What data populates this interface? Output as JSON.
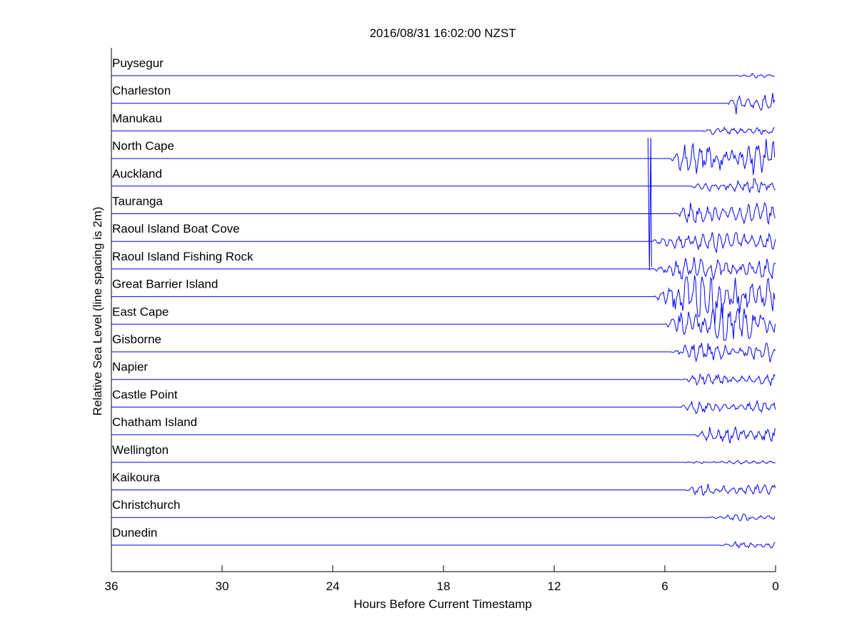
{
  "chart_data": {
    "type": "line",
    "title": "2016/08/31 16:02:00 NZST",
    "xlabel": "Hours Before Current Timestamp",
    "ylabel": "Relative Sea Level (line spacing is 2m)",
    "xlim": [
      36,
      0
    ],
    "x_ticks": [
      36,
      30,
      24,
      18,
      12,
      6,
      0
    ],
    "x_reversed": true,
    "line_spacing_m": 2,
    "line_color": "#0000ff",
    "grid": false,
    "series": [
      {
        "name": "Puysegur",
        "event_start_h": 2.2,
        "amplitude": 0.2
      },
      {
        "name": "Charleston",
        "event_start_h": 2.6,
        "amplitude": 0.9
      },
      {
        "name": "Manukau",
        "event_start_h": 4.0,
        "amplitude": 0.35
      },
      {
        "name": "North Cape",
        "event_start_h": 5.8,
        "amplitude": 1.6
      },
      {
        "name": "Auckland",
        "event_start_h": 4.6,
        "amplitude": 0.6
      },
      {
        "name": "Tauranga",
        "event_start_h": 5.6,
        "amplitude": 0.9
      },
      {
        "name": "Raoul Island Boat Cove",
        "event_start_h": 6.8,
        "amplitude": 1.0
      },
      {
        "name": "Raoul Island Fishing Rock",
        "event_start_h": 6.8,
        "amplitude": 1.0
      },
      {
        "name": "Great Barrier Island",
        "event_start_h": 6.6,
        "amplitude": 2.2
      },
      {
        "name": "East Cape",
        "event_start_h": 6.0,
        "amplitude": 1.8
      },
      {
        "name": "Gisborne",
        "event_start_h": 5.7,
        "amplitude": 0.8
      },
      {
        "name": "Napier",
        "event_start_h": 5.2,
        "amplitude": 0.5
      },
      {
        "name": "Castle Point",
        "event_start_h": 5.3,
        "amplitude": 0.5
      },
      {
        "name": "Chatham Island",
        "event_start_h": 4.5,
        "amplitude": 0.8
      },
      {
        "name": "Wellington",
        "event_start_h": 5.0,
        "amplitude": 0.15
      },
      {
        "name": "Kaikoura",
        "event_start_h": 5.0,
        "amplitude": 0.5
      },
      {
        "name": "Christchurch",
        "event_start_h": 3.7,
        "amplitude": 0.3
      },
      {
        "name": "Dunedin",
        "event_start_h": 3.1,
        "amplitude": 0.3
      }
    ],
    "spike": {
      "station": "Raoul Island Fishing Rock",
      "time_h": 6.8,
      "min_m": -9.5,
      "max_m": 9.5
    }
  }
}
